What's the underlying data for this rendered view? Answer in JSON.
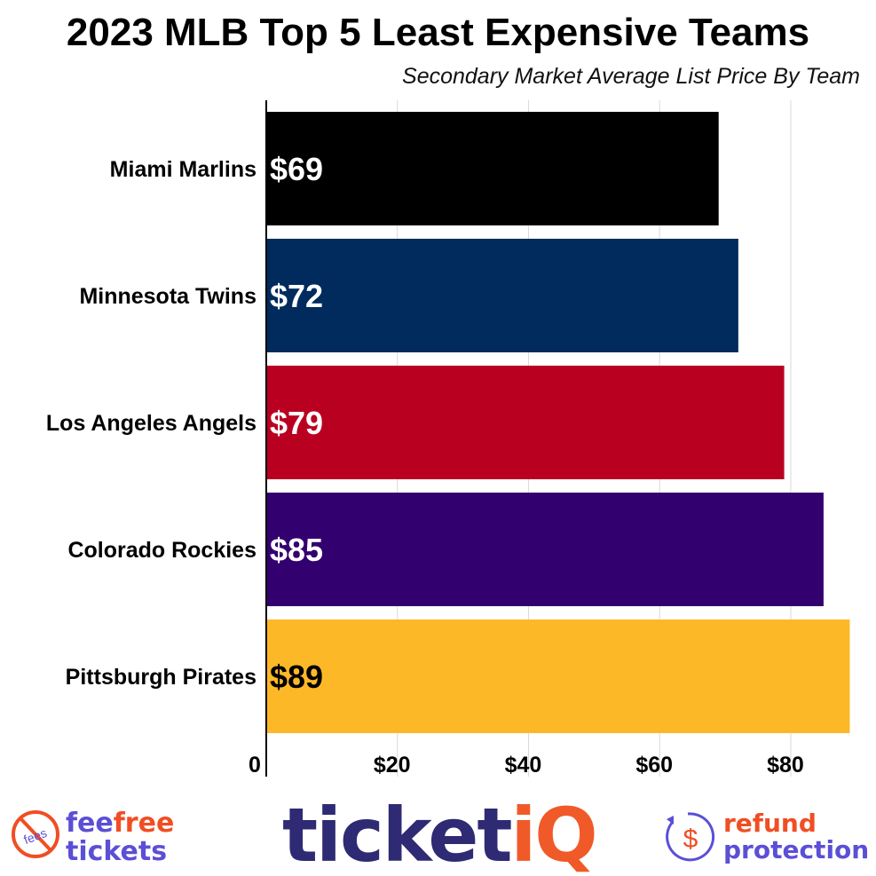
{
  "chart_data": {
    "type": "bar",
    "orientation": "horizontal",
    "title": "2023 MLB Top 5 Least Expensive Teams",
    "subtitle": "Secondary Market Average List Price By Team",
    "categories": [
      "Miami Marlins",
      "Minnesota Twins",
      "Los Angeles Angels",
      "Colorado Rockies",
      "Pittsburgh Pirates"
    ],
    "values": [
      69,
      72,
      79,
      85,
      89
    ],
    "data_labels": [
      "$69",
      "$72",
      "$79",
      "$85",
      "$89"
    ],
    "colors": [
      "#000000",
      "#002b5c",
      "#ba0021",
      "#33006f",
      "#fdb827"
    ],
    "label_colors": [
      "#ffffff",
      "#ffffff",
      "#ffffff",
      "#ffffff",
      "#000000"
    ],
    "x_ticks": [
      0,
      20,
      40,
      60,
      80
    ],
    "x_tick_labels": [
      "0",
      "$20",
      "$40",
      "$60",
      "$80"
    ],
    "xlim": [
      0,
      93
    ],
    "grid": true,
    "xlabel": "",
    "ylabel": ""
  },
  "logos": {
    "feefree": {
      "icon_text": "fees",
      "word1": "fee",
      "word2": "free",
      "word3": "tickets"
    },
    "ticketiq": {
      "main": "ticket",
      "accent": "iQ"
    },
    "refund": {
      "word1": "refund",
      "word2": "protection"
    }
  }
}
